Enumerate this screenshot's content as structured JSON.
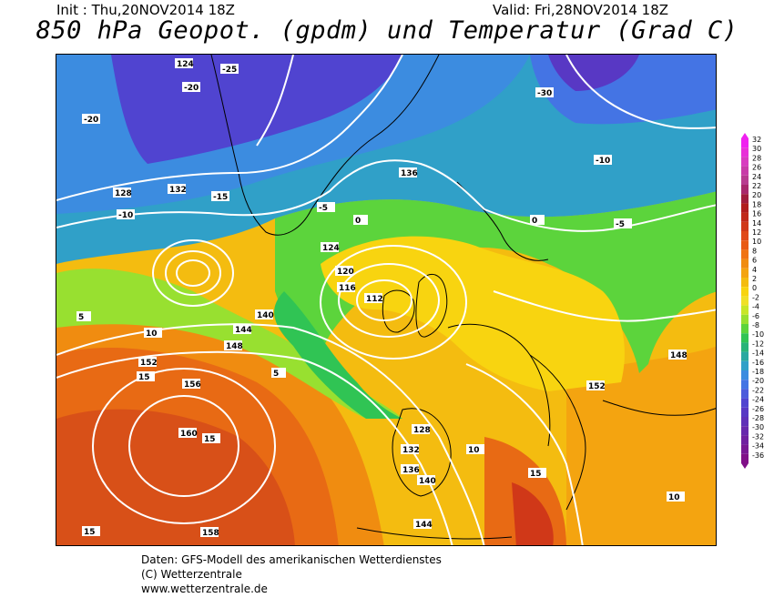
{
  "header": {
    "init": "Init : Thu,20NOV2014  18Z",
    "valid": "Valid: Fri,28NOV2014  18Z",
    "title": "850 hPa Geopot. (gpdm) und Temperatur (Grad C)"
  },
  "footer": {
    "line1": "Daten: GFS-Modell des amerikanischen Wetterdienstes",
    "line2": "(C) Wetterzentrale",
    "line3": "www.wetterzentrale.de"
  },
  "colorbar": {
    "ticks": [
      "32",
      "30",
      "28",
      "26",
      "24",
      "22",
      "20",
      "18",
      "16",
      "14",
      "12",
      "10",
      "8",
      "6",
      "4",
      "2",
      "0",
      "-2",
      "-4",
      "-6",
      "-8",
      "-10",
      "-12",
      "-14",
      "-16",
      "-18",
      "-20",
      "-22",
      "-24",
      "-26",
      "-28",
      "-30",
      "-32",
      "-34",
      "-36"
    ],
    "colors": [
      "#f020f0",
      "#e830d8",
      "#d83cc0",
      "#c83ca8",
      "#b83c90",
      "#a8286c",
      "#a01c3c",
      "#b01c1c",
      "#c02818",
      "#d03818",
      "#e04818",
      "#e85a14",
      "#f07414",
      "#f08c10",
      "#f4a410",
      "#f4bc10",
      "#f8d410",
      "#f0e028",
      "#c8e628",
      "#98e030",
      "#5cd43c",
      "#30c454",
      "#28b478",
      "#28a8a0",
      "#30a0c8",
      "#3c8ce0",
      "#4474e4",
      "#4c5cdc",
      "#5044d0",
      "#5838c4",
      "#6030b8",
      "#6828ac",
      "#7020a0",
      "#781894",
      "#801088"
    ]
  },
  "map": {
    "geopotential_labels": [
      {
        "text": "124",
        "pos": "northwest"
      },
      {
        "text": "128",
        "pos": "northwest"
      },
      {
        "text": "132",
        "pos": "northwest"
      },
      {
        "text": "136",
        "pos": "north"
      },
      {
        "text": "112",
        "pos": "low-west-of-ireland"
      },
      {
        "text": "116",
        "pos": "low-west-of-ireland"
      },
      {
        "text": "120",
        "pos": "low-west-of-ireland"
      },
      {
        "text": "124",
        "pos": "central"
      },
      {
        "text": "140",
        "pos": "central"
      },
      {
        "text": "144",
        "pos": "central"
      },
      {
        "text": "148",
        "pos": "central"
      },
      {
        "text": "152",
        "pos": "southwest"
      },
      {
        "text": "156",
        "pos": "southwest"
      },
      {
        "text": "160",
        "pos": "azores-high"
      },
      {
        "text": "158",
        "pos": "south"
      },
      {
        "text": "128",
        "pos": "iberia"
      },
      {
        "text": "132",
        "pos": "iberia"
      },
      {
        "text": "136",
        "pos": "iberia"
      },
      {
        "text": "140",
        "pos": "iberia"
      },
      {
        "text": "144",
        "pos": "iberia"
      },
      {
        "text": "148",
        "pos": "east"
      },
      {
        "text": "152",
        "pos": "east"
      }
    ],
    "temperature_labels": [
      "-30",
      "-25",
      "-20",
      "-15",
      "-10",
      "-5",
      "0",
      "5",
      "10",
      "15"
    ]
  }
}
